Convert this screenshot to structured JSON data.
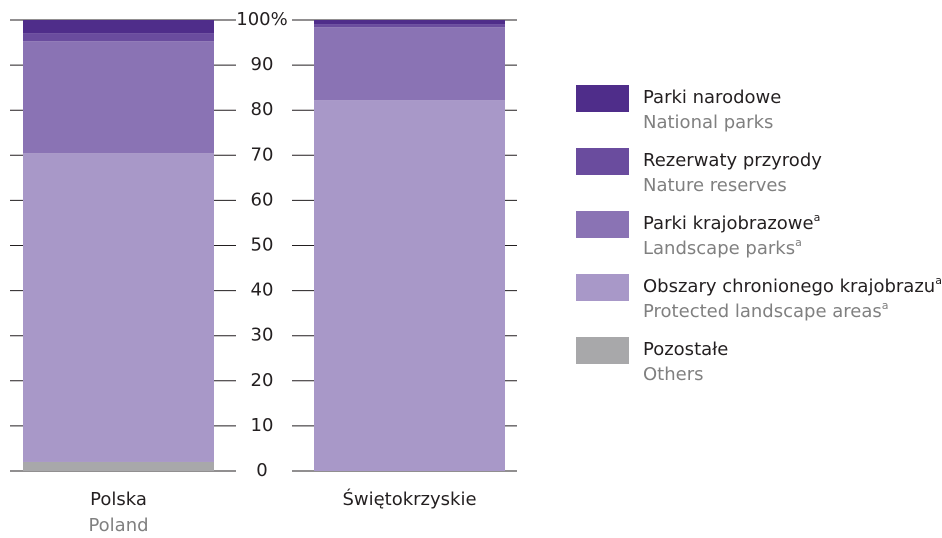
{
  "chart_data": {
    "type": "stacked_bar",
    "categories": [
      "Polska",
      "Świętokrzyskie"
    ],
    "categories_en": [
      "Poland",
      null
    ],
    "series": [
      {
        "name": "Parki narodowe",
        "name_en": "National parks",
        "color": "#4f2d8a",
        "values": [
          2.9,
          0.9
        ]
      },
      {
        "name": "Rezerwaty przyrody",
        "name_en": "Nature reserves",
        "color": "#6a4c9e",
        "values": [
          1.8,
          0.7
        ]
      },
      {
        "name": "Parki krajobrazowe",
        "name_en": "Landscape parks",
        "footnote": "a",
        "color": "#8a73b4",
        "values": [
          24.8,
          16.2
        ]
      },
      {
        "name": "Obszary chronionego krajobrazu",
        "name_en": "Protected landscape areas",
        "footnote": "a",
        "color": "#a898c8",
        "values": [
          68.5,
          82.2
        ]
      },
      {
        "name": "Pozostałe",
        "name_en": "Others",
        "color": "#a8a8aa",
        "values": [
          2.0,
          0
        ]
      }
    ],
    "ylim": [
      0,
      100
    ],
    "yticks": [
      0,
      10,
      20,
      30,
      40,
      50,
      60,
      70,
      80,
      90,
      {
        "value": 100,
        "label": "100%"
      }
    ]
  }
}
